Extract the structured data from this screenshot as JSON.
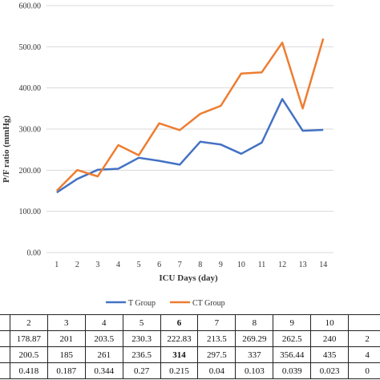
{
  "chart_data": {
    "type": "line",
    "x": [
      1,
      2,
      3,
      4,
      5,
      6,
      7,
      8,
      9,
      10,
      11,
      12,
      13,
      14
    ],
    "xlabel": "ICU Days (day)",
    "ylabel": "P/F ratio (mmHg)",
    "ylim": [
      0,
      600
    ],
    "yticks": [
      "0.00",
      "100.00",
      "200.00",
      "300.00",
      "400.00",
      "500.00",
      "600.00"
    ],
    "grid": "horizontal",
    "legend_position": "bottom",
    "series": [
      {
        "name": "T Group",
        "color": "#4472c4",
        "values": [
          146,
          178.87,
          201,
          203.5,
          230.3,
          222.83,
          213.5,
          269.29,
          262.5,
          240,
          267,
          373,
          296,
          298
        ]
      },
      {
        "name": "CT Group",
        "color": "#ed7d31",
        "values": [
          150,
          200.5,
          185,
          261,
          236.5,
          314,
          297.5,
          337,
          356.44,
          435,
          438,
          510,
          350,
          520
        ]
      }
    ]
  },
  "table": {
    "rows": [
      [
        "",
        "2",
        "3",
        "4",
        "5",
        "6",
        "7",
        "8",
        "9",
        "10",
        ""
      ],
      [
        "",
        "178.87",
        "201",
        "203.5",
        "230.3",
        "222.83",
        "213.5",
        "269.29",
        "262.5",
        "240",
        "2"
      ],
      [
        "",
        "200.5",
        "185",
        "261",
        "236.5",
        "314",
        "297.5",
        "337",
        "356.44",
        "435",
        "4"
      ],
      [
        "",
        "0.418",
        "0.187",
        "0.344",
        "0.27",
        "0.215",
        "0.04",
        "0.103",
        "0.039",
        "0.023",
        "0"
      ]
    ]
  }
}
